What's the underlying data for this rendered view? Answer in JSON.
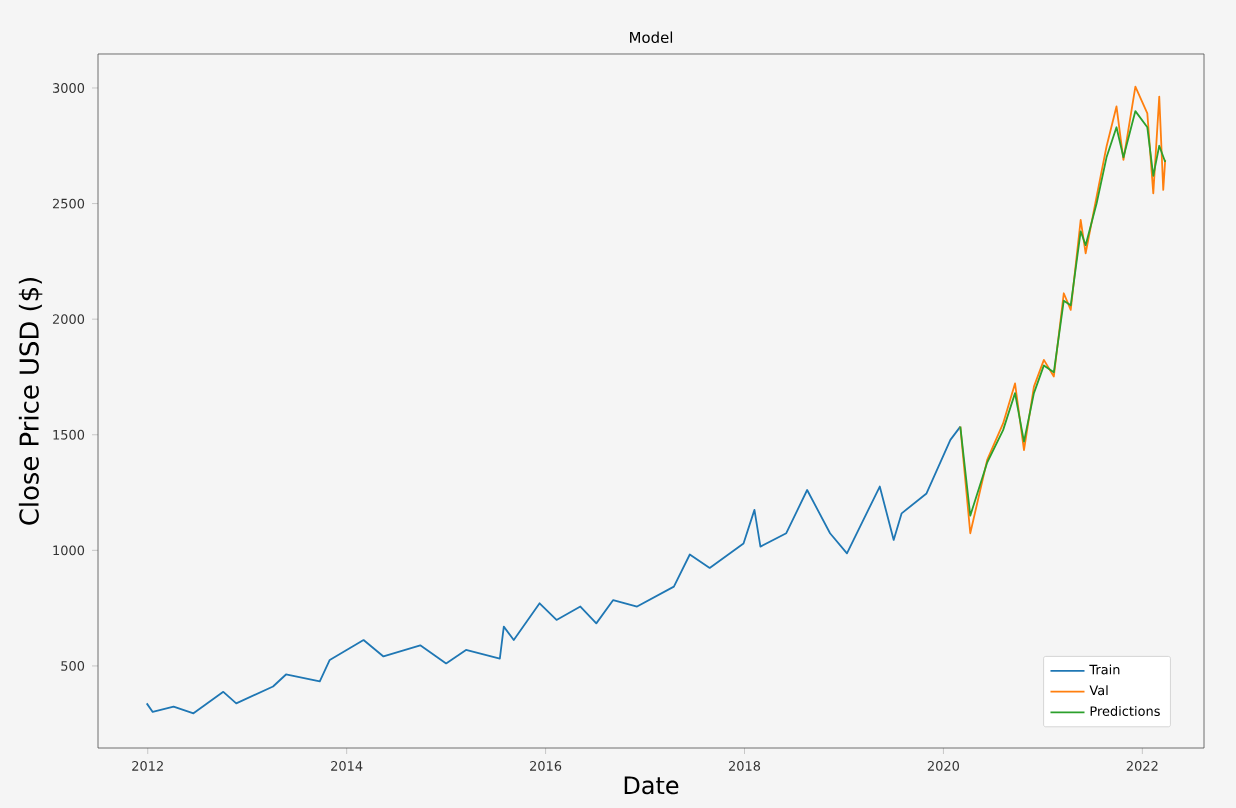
{
  "chart_data": {
    "type": "line",
    "title": "Model",
    "xlabel": "Date",
    "ylabel": "Close Price USD ($)",
    "xlim": [
      2011.5,
      2022.62
    ],
    "ylim": [
      145,
      3147
    ],
    "xticks": [
      2012,
      2014,
      2016,
      2018,
      2020,
      2022
    ],
    "yticks": [
      500,
      1000,
      1500,
      2000,
      2500,
      3000
    ],
    "legend": "bottom right",
    "grid": false,
    "series": [
      {
        "name": "Train",
        "color": "#1f77b4",
        "x": [
          2011.99,
          2012.05,
          2012.26,
          2012.46,
          2012.76,
          2012.89,
          2013.26,
          2013.39,
          2013.73,
          2013.83,
          2014.17,
          2014.37,
          2014.74,
          2015.0,
          2015.2,
          2015.54,
          2015.58,
          2015.68,
          2015.94,
          2016.11,
          2016.35,
          2016.51,
          2016.68,
          2016.92,
          2017.29,
          2017.45,
          2017.65,
          2017.99,
          2018.1,
          2018.16,
          2018.42,
          2018.63,
          2018.86,
          2019.03,
          2019.36,
          2019.5,
          2019.58,
          2019.83,
          2020.07,
          2020.17
        ],
        "values": [
          338,
          301,
          324,
          295,
          388,
          338,
          411,
          463,
          433,
          526,
          612,
          541,
          589,
          511,
          569,
          532,
          670,
          612,
          771,
          699,
          757,
          684,
          785,
          757,
          843,
          982,
          924,
          1030,
          1175,
          1016,
          1074,
          1261,
          1074,
          987,
          1276,
          1045,
          1160,
          1246,
          1478,
          1535
        ]
      },
      {
        "name": "Val",
        "color": "#ff7f0e",
        "x": [
          2020.17,
          2020.27,
          2020.44,
          2020.6,
          2020.72,
          2020.81,
          2020.91,
          2021.01,
          2021.11,
          2021.21,
          2021.28,
          2021.38,
          2021.43,
          2021.54,
          2021.64,
          2021.74,
          2021.81,
          2021.93,
          2022.05,
          2022.11,
          2022.17,
          2022.21,
          2022.23
        ],
        "values": [
          1535,
          1074,
          1391,
          1549,
          1722,
          1434,
          1708,
          1824,
          1752,
          2112,
          2040,
          2429,
          2285,
          2530,
          2747,
          2920,
          2689,
          3006,
          2890,
          2544,
          2963,
          2559,
          2689
        ]
      },
      {
        "name": "Predictions",
        "color": "#2ca02c",
        "x": [
          2020.17,
          2020.27,
          2020.44,
          2020.6,
          2020.72,
          2020.81,
          2020.91,
          2021.01,
          2021.11,
          2021.21,
          2021.28,
          2021.38,
          2021.43,
          2021.54,
          2021.64,
          2021.74,
          2021.81,
          2021.93,
          2022.05,
          2022.11,
          2022.17,
          2022.23
        ],
        "values": [
          1535,
          1150,
          1380,
          1520,
          1680,
          1470,
          1680,
          1800,
          1770,
          2080,
          2060,
          2380,
          2320,
          2500,
          2700,
          2830,
          2700,
          2900,
          2830,
          2620,
          2750,
          2680
        ]
      }
    ]
  }
}
